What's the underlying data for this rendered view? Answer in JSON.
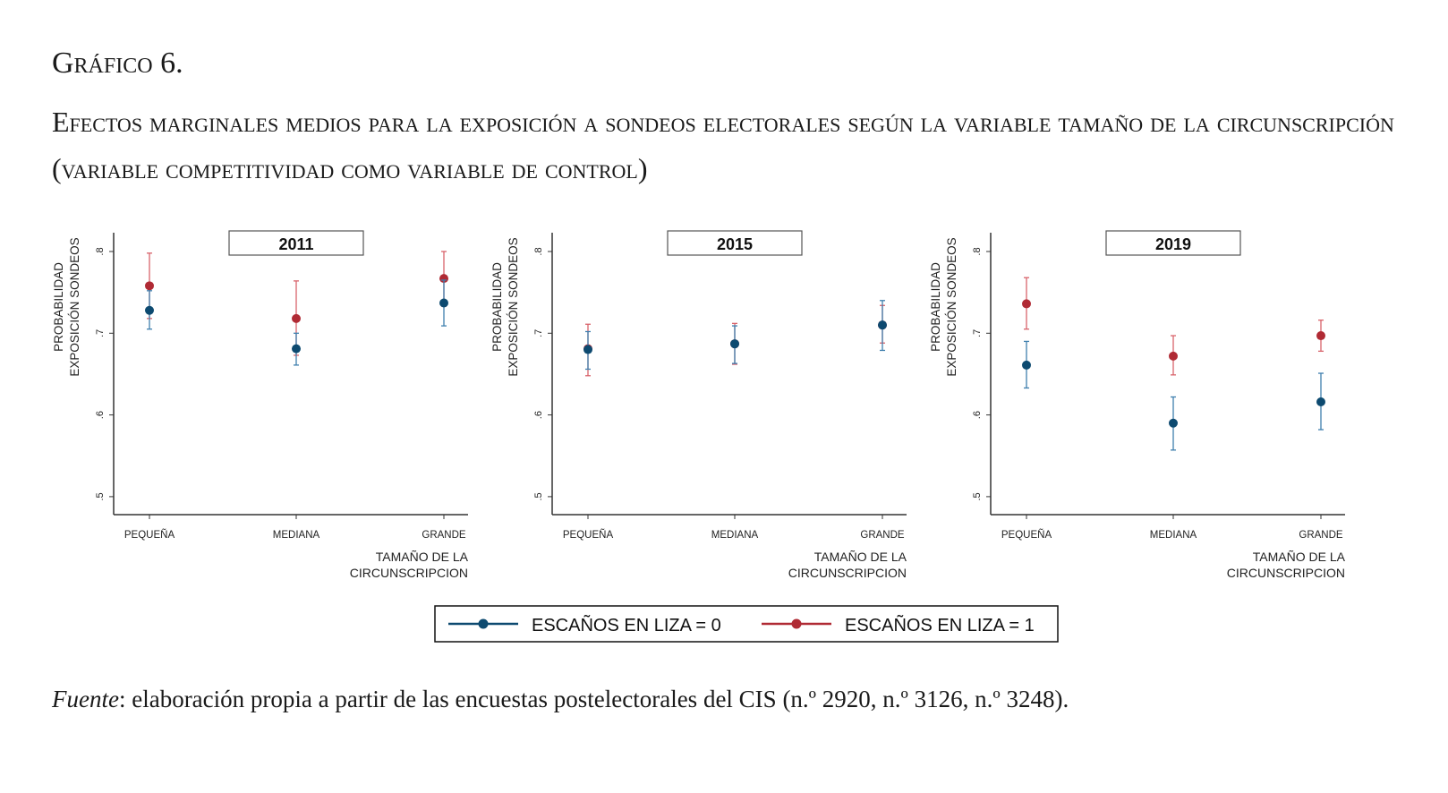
{
  "figure": {
    "label": "Gráfico 6.",
    "title": "Efectos marginales medios para la exposición a sondeos electorales según la variable tamaño de la circunscripción (variable competitividad como variable de control)",
    "source_label": "Fuente",
    "source_text": ": elaboración propia a partir de las encuestas postelectorales del CIS (n.º 2920, n.º 3126, n.º 3248)."
  },
  "chart_data": {
    "type": "scatter",
    "ylabel_line1": "PROBABILIDAD",
    "ylabel_line2": "EXPOSICIÓN SONDEOS",
    "xlabel_line1": "TAMAÑO DE LA",
    "xlabel_line2": "CIRCUNSCRIPCION",
    "categories": [
      "PEQUEÑA",
      "MEDIANA",
      "GRANDE"
    ],
    "yticks": [
      0.5,
      0.6,
      0.7,
      0.8
    ],
    "ytick_labels": [
      ".5",
      ".6",
      ".7",
      ".8"
    ],
    "ylim": [
      0.478,
      0.823
    ],
    "grid": false,
    "legend_position": "bottom",
    "legend": [
      {
        "name": "ESCAÑOS EN LIZA = 0",
        "color": "#0d4a70"
      },
      {
        "name": "ESCAÑOS EN LIZA = 1",
        "color": "#b02a34"
      }
    ],
    "panels": [
      {
        "title": "2011",
        "series": [
          {
            "name": "ESCAÑOS EN LIZA = 1",
            "values": [
              0.758,
              0.718,
              0.767
            ],
            "lower": [
              0.718,
              0.673,
              0.733
            ],
            "upper": [
              0.798,
              0.764,
              0.8
            ]
          },
          {
            "name": "ESCAÑOS EN LIZA = 0",
            "values": [
              0.728,
              0.681,
              0.737
            ],
            "lower": [
              0.705,
              0.661,
              0.709
            ],
            "upper": [
              0.752,
              0.7,
              0.765
            ]
          }
        ]
      },
      {
        "title": "2015",
        "series": [
          {
            "name": "ESCAÑOS EN LIZA = 1",
            "values": [
              0.681,
              0.687,
              0.71
            ],
            "lower": [
              0.648,
              0.662,
              0.688
            ],
            "upper": [
              0.711,
              0.712,
              0.734
            ]
          },
          {
            "name": "ESCAÑOS EN LIZA = 0",
            "values": [
              0.68,
              0.687,
              0.71
            ],
            "lower": [
              0.656,
              0.663,
              0.679
            ],
            "upper": [
              0.702,
              0.709,
              0.74
            ]
          }
        ]
      },
      {
        "title": "2019",
        "series": [
          {
            "name": "ESCAÑOS EN LIZA = 1",
            "values": [
              0.736,
              0.672,
              0.697
            ],
            "lower": [
              0.705,
              0.649,
              0.678
            ],
            "upper": [
              0.768,
              0.697,
              0.716
            ]
          },
          {
            "name": "ESCAÑOS EN LIZA = 0",
            "values": [
              0.661,
              0.59,
              0.616
            ],
            "lower": [
              0.633,
              0.557,
              0.582
            ],
            "upper": [
              0.69,
              0.622,
              0.651
            ]
          }
        ]
      }
    ]
  }
}
